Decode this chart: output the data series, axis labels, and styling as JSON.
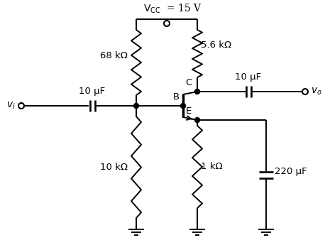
{
  "bg_color": "#ffffff",
  "line_color": "#000000",
  "r1_label": "68 kΩ",
  "r2_label": "10 kΩ",
  "rc_label": "5.6 kΩ",
  "re_label": "1 kΩ",
  "c1_label": "10 μF",
  "c2_label": "10 μF",
  "ce_label": "220 μF",
  "vi_label": "$v_i$",
  "vo_label": "$v_o$",
  "B_label": "B",
  "C_label": "C",
  "E_label": "E",
  "vcc_label": "$\\mathrm{V_{CC}}$  = 15 V"
}
